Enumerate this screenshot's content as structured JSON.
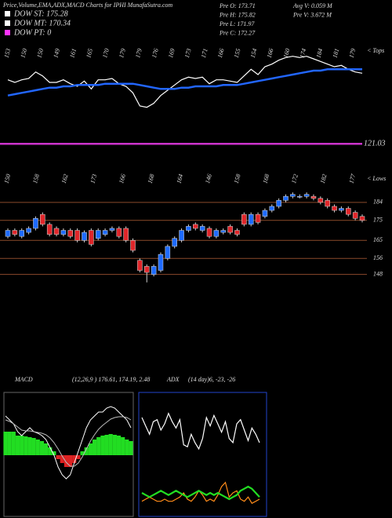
{
  "header": {
    "title": "Price,Volume,EMA,ADX,MACD Charts for IPHI MunafaSutra.com",
    "legend": [
      {
        "label": "DOW ST: 175.28",
        "color": "#ffffff"
      },
      {
        "label": "DOW MT: 170.34",
        "color": "#ffffff"
      },
      {
        "label": "DOW PT: 0",
        "color": "#ff33ff"
      }
    ],
    "stats_left": [
      "Pre O: 173.71",
      "Pre H: 175.82",
      "Pre L: 171.97",
      "Pre C: 172.27"
    ],
    "stats_right": [
      "Avg V: 0.059 M",
      "Pre V: 3.672 M"
    ]
  },
  "chart_data": [
    {
      "type": "line",
      "tops": [
        "153",
        "150",
        "150",
        "149",
        "161",
        "165",
        "170",
        "179",
        "179",
        "176",
        "169",
        "173",
        "171",
        "166",
        "155",
        "154",
        "166",
        "160",
        "174",
        "184",
        "181",
        "179"
      ],
      "tops_label": "< Tops",
      "lows": [
        "150",
        "158",
        "162",
        "173",
        "166",
        "168",
        "164",
        "146",
        "158",
        "168",
        "172",
        "182",
        "177"
      ],
      "lows_label": "< Lows",
      "level": 121.03,
      "level_color": "#cc33cc",
      "ylim": [
        90,
        195
      ],
      "series": [
        {
          "name": "EMA",
          "color": "#2266ff",
          "values": [
            158,
            159,
            160,
            161,
            162,
            163,
            164,
            164,
            165,
            165,
            166,
            166,
            166,
            166,
            167,
            167,
            167,
            167,
            167,
            166,
            165,
            164,
            163,
            163,
            163,
            164,
            164,
            165,
            165,
            165,
            165,
            166,
            166,
            166,
            167,
            168,
            169,
            170,
            171,
            172,
            173,
            174,
            175,
            176,
            177,
            177,
            178,
            178,
            178,
            178,
            178,
            178
          ]
        }
      ]
    },
    {
      "type": "candlestick",
      "up_color": "#1e6bff",
      "down_color": "#e0262a",
      "open": [
        167,
        170,
        167,
        169,
        171,
        178,
        173,
        171,
        168,
        170,
        170,
        165,
        170,
        166,
        168,
        170,
        171,
        171,
        165,
        155,
        152,
        148,
        150,
        156,
        162,
        165,
        170,
        173,
        170,
        171,
        167,
        169,
        172,
        170,
        178,
        173,
        178,
        177,
        180,
        182,
        185,
        187,
        187,
        187,
        187,
        186,
        185,
        182,
        180,
        181,
        179,
        177
      ],
      "high": [
        171,
        171,
        171,
        172,
        177,
        179,
        174,
        172,
        171,
        171,
        171,
        170,
        171,
        171,
        171,
        172,
        172,
        172,
        166,
        156,
        153,
        153,
        159,
        163,
        167,
        171,
        173,
        174,
        173,
        172,
        171,
        171,
        173,
        171,
        179,
        179,
        179,
        181,
        183,
        186,
        188,
        189,
        188,
        189,
        188,
        187,
        186,
        183,
        182,
        182,
        180,
        178
      ],
      "low": [
        166,
        167,
        166,
        168,
        170,
        172,
        167,
        167,
        167,
        166,
        164,
        164,
        162,
        165,
        167,
        169,
        166,
        164,
        159,
        149,
        144,
        147,
        149,
        155,
        161,
        164,
        169,
        170,
        169,
        166,
        166,
        168,
        168,
        167,
        172,
        172,
        173,
        176,
        179,
        181,
        184,
        186,
        186,
        186,
        185,
        183,
        181,
        179,
        179,
        177,
        175,
        174
      ],
      "close": [
        170,
        168,
        170,
        171,
        176,
        173,
        168,
        168,
        170,
        167,
        165,
        169,
        163,
        170,
        170,
        171,
        167,
        165,
        160,
        150,
        149,
        152,
        158,
        162,
        166,
        170,
        172,
        171,
        172,
        167,
        170,
        170,
        169,
        168,
        173,
        178,
        174,
        180,
        182,
        185,
        187,
        188,
        187,
        188,
        186,
        184,
        182,
        180,
        181,
        178,
        176,
        175
      ],
      "ylim": [
        140,
        191
      ],
      "yticks": [
        184,
        175,
        165,
        156,
        148
      ],
      "grid_color": "#8b4a2b"
    },
    {
      "type": "macd",
      "label": "MACD",
      "params": "(12,26,9 ) 176.61, 174.19, 2.48",
      "ylim": [
        -8,
        8
      ],
      "histogram": [
        3,
        3,
        3,
        2.5,
        2.5,
        2.4,
        2.3,
        2.2,
        2,
        1.8,
        1.5,
        1,
        0.5,
        -0.5,
        -1,
        -1.5,
        -1.5,
        -1,
        -0.5,
        0.5,
        1,
        1.5,
        2,
        2.3,
        2.5,
        2.6,
        2.7,
        2.6,
        2.5,
        2.3,
        2,
        1.8
      ],
      "hist_up_color": "#22dd22",
      "hist_down_color": "#dd2222",
      "series": [
        {
          "name": "MACD",
          "color": "#ffffff",
          "values": [
            5,
            4.5,
            4,
            3,
            2.5,
            3,
            3.5,
            3,
            2.8,
            2.5,
            2,
            1,
            0,
            -1.5,
            -2.5,
            -3,
            -2.5,
            -1,
            0.5,
            2,
            3.5,
            4.5,
            5,
            5.5,
            5.5,
            6,
            6.2,
            6,
            5.5,
            5,
            4.5,
            3.5
          ]
        },
        {
          "name": "Signal",
          "color": "#bbbbbb",
          "values": [
            4.5,
            4.3,
            4,
            3.6,
            3.2,
            3.1,
            3.1,
            3,
            2.9,
            2.8,
            2.6,
            2.2,
            1.6,
            0.8,
            -0.1,
            -0.9,
            -1.4,
            -1.4,
            -1,
            -0.2,
            0.8,
            1.8,
            2.6,
            3.3,
            3.8,
            4.2,
            4.6,
            4.8,
            4.9,
            4.9,
            4.8,
            4.5
          ]
        }
      ]
    },
    {
      "type": "adx",
      "label": "ADX",
      "params": "(14 day)6, -23, -26",
      "ylim": [
        0,
        60
      ],
      "series": [
        {
          "name": "+DI",
          "color": "#ffffff",
          "values": [
            48,
            44,
            40,
            46,
            47,
            42,
            45,
            50,
            46,
            43,
            47,
            35,
            34,
            40,
            36,
            33,
            38,
            48,
            44,
            49,
            45,
            41,
            46,
            38,
            36,
            45,
            47,
            42,
            37,
            43,
            40,
            36
          ]
        },
        {
          "name": "-DI",
          "color": "#ff8c1a",
          "values": [
            8,
            9,
            10,
            9,
            8,
            8,
            9,
            8,
            8,
            9,
            10,
            12,
            9,
            8,
            10,
            13,
            11,
            8,
            9,
            8,
            11,
            15,
            17,
            10,
            12,
            13,
            9,
            8,
            10,
            7,
            8,
            9
          ]
        },
        {
          "name": "ADX",
          "color": "#22dd22",
          "values": [
            12,
            11,
            10,
            11,
            12,
            13,
            12,
            11,
            12,
            13,
            12,
            11,
            10,
            11,
            12,
            13,
            12,
            11,
            12,
            11,
            12,
            11,
            10,
            9,
            10,
            11,
            13,
            14,
            15,
            14,
            12,
            10
          ]
        }
      ]
    }
  ]
}
